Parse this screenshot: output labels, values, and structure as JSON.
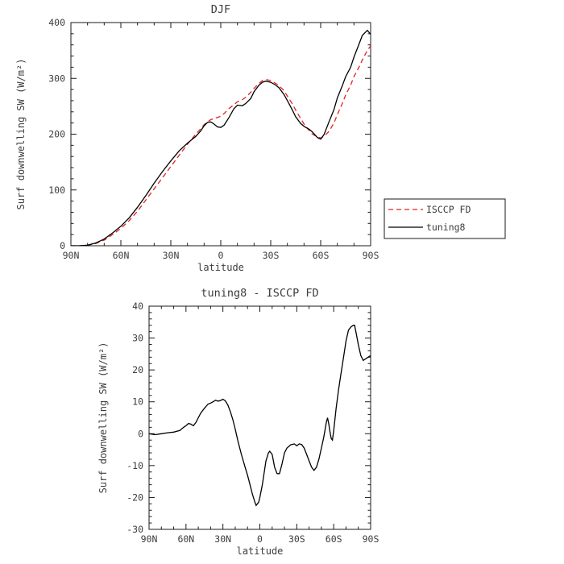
{
  "page": {
    "background": "#ffffff"
  },
  "colors": {
    "axis": "#1a1a1a",
    "text": "#3c3c3c",
    "isccp_fd": "#e02222",
    "tuning8": "#000000"
  },
  "chart_data": [
    {
      "type": "line",
      "title": "DJF",
      "xlabel": "latitude",
      "ylabel": "Surf downwelling SW (W/m²)",
      "xlim": [
        90,
        -90
      ],
      "ylim": [
        0,
        400
      ],
      "grid": false,
      "x_ticks": {
        "values": [
          90,
          60,
          30,
          0,
          -30,
          -60,
          -90
        ],
        "labels": [
          "90N",
          "60N",
          "30N",
          "0",
          "30S",
          "60S",
          "90S"
        ],
        "minor": 10
      },
      "y_ticks": {
        "values": [
          0,
          100,
          200,
          300,
          400
        ],
        "labels": [
          "0",
          "100",
          "200",
          "300",
          "400"
        ],
        "minor": 20
      },
      "legend": {
        "show": true,
        "position": "outside-right-bottom"
      },
      "series": [
        {
          "name": "ISCCP FD",
          "color": "#e02222",
          "dash": [
            6,
            4
          ],
          "x": [
            90,
            85,
            80,
            75,
            70,
            65,
            60,
            55,
            50,
            45,
            40,
            35,
            30,
            25,
            20,
            15,
            12,
            10,
            8,
            6,
            4,
            2,
            0,
            -2,
            -5,
            -8,
            -10,
            -13,
            -15,
            -18,
            -20,
            -23,
            -25,
            -27,
            -30,
            -33,
            -35,
            -38,
            -40,
            -43,
            -45,
            -48,
            -50,
            -53,
            -55,
            -58,
            -60,
            -62,
            -65,
            -68,
            -70,
            -73,
            -75,
            -78,
            -80,
            -83,
            -85,
            -88,
            -90
          ],
          "y": [
            0,
            0,
            1,
            4,
            10,
            20,
            31,
            45,
            62,
            82,
            102,
            122,
            142,
            162,
            182,
            200,
            210,
            217,
            222,
            226,
            228,
            230,
            232,
            237,
            246,
            253,
            258,
            262,
            266,
            275,
            282,
            291,
            296,
            298,
            296,
            291,
            287,
            278,
            268,
            254,
            243,
            228,
            218,
            207,
            200,
            195,
            193,
            196,
            205,
            220,
            235,
            255,
            270,
            288,
            303,
            320,
            333,
            350,
            358
          ]
        },
        {
          "name": "tuning8",
          "color": "#000000",
          "dash": null,
          "x": [
            90,
            85,
            80,
            75,
            70,
            65,
            60,
            55,
            50,
            45,
            40,
            35,
            30,
            25,
            20,
            15,
            12,
            10,
            8,
            6,
            4,
            2,
            0,
            -2,
            -5,
            -8,
            -10,
            -13,
            -15,
            -18,
            -20,
            -23,
            -25,
            -27,
            -30,
            -33,
            -35,
            -38,
            -40,
            -43,
            -45,
            -48,
            -50,
            -53,
            -55,
            -58,
            -60,
            -62,
            -65,
            -68,
            -70,
            -73,
            -75,
            -78,
            -80,
            -83,
            -85,
            -88,
            -90
          ],
          "y": [
            0,
            0,
            1,
            5,
            12,
            23,
            35,
            50,
            69,
            90,
            112,
            133,
            152,
            170,
            184,
            196,
            206,
            215,
            221,
            222,
            218,
            213,
            212,
            216,
            230,
            246,
            252,
            251,
            255,
            264,
            276,
            288,
            293,
            295,
            293,
            288,
            283,
            271,
            260,
            243,
            231,
            219,
            214,
            209,
            204,
            194,
            191,
            199,
            222,
            244,
            265,
            287,
            303,
            320,
            338,
            361,
            377,
            386,
            379
          ]
        }
      ]
    },
    {
      "type": "line",
      "title": "tuning8 - ISCCP FD",
      "xlabel": "latitude",
      "ylabel": "Surf downwelling SW (W/m²)",
      "xlim": [
        90,
        -90
      ],
      "ylim": [
        -30,
        40
      ],
      "grid": false,
      "x_ticks": {
        "values": [
          90,
          60,
          30,
          0,
          -30,
          -60,
          -90
        ],
        "labels": [
          "90N",
          "60N",
          "30N",
          "0",
          "30S",
          "60S",
          "90S"
        ],
        "minor": 10
      },
      "y_ticks": {
        "values": [
          -30,
          -20,
          -10,
          0,
          10,
          20,
          30,
          40
        ],
        "labels": [
          "-30",
          "-20",
          "-10",
          "0",
          "10",
          "20",
          "30",
          "40"
        ],
        "minor": 2
      },
      "legend": {
        "show": false
      },
      "series": [
        {
          "name": "tuning8 - ISCCP FD",
          "color": "#000000",
          "dash": null,
          "x": [
            90,
            85,
            80,
            75,
            70,
            65,
            62,
            60,
            58,
            56,
            54,
            52,
            50,
            48,
            45,
            42,
            40,
            38,
            36,
            34,
            32,
            30,
            28,
            26,
            24,
            22,
            20,
            18,
            15,
            12,
            10,
            8,
            6,
            4,
            3,
            1,
            0,
            -2,
            -4,
            -5,
            -7,
            -8,
            -10,
            -12,
            -14,
            -16,
            -18,
            -20,
            -22,
            -25,
            -28,
            -30,
            -32,
            -34,
            -36,
            -38,
            -40,
            -42,
            -44,
            -46,
            -48,
            -50,
            -52,
            -54,
            -55,
            -56,
            -57,
            -58,
            -59,
            -60,
            -62,
            -64,
            -66,
            -68,
            -70,
            -72,
            -74,
            -76,
            -77,
            -78,
            -80,
            -82,
            -84,
            -86,
            -88,
            -90
          ],
          "y": [
            0,
            -0.3,
            0,
            0.3,
            0.5,
            1,
            2,
            2.5,
            3.2,
            3,
            2.5,
            3.5,
            5,
            6.5,
            8,
            9.3,
            9.6,
            10,
            10.5,
            10.2,
            10.4,
            10.8,
            10.3,
            9,
            7,
            4.5,
            1.5,
            -2,
            -6.5,
            -10.5,
            -13,
            -16,
            -19,
            -21.5,
            -22.5,
            -21.5,
            -20,
            -16,
            -11,
            -8.5,
            -6,
            -5.5,
            -6.5,
            -10.5,
            -12.5,
            -12.5,
            -9.5,
            -6,
            -4.5,
            -3.5,
            -3.2,
            -3.8,
            -3.2,
            -3.4,
            -4.5,
            -6.5,
            -8.5,
            -10.5,
            -11.5,
            -10.5,
            -8,
            -4.5,
            -1,
            3.5,
            5,
            3,
            0.5,
            -1.5,
            -2,
            1,
            8,
            14,
            19,
            24,
            29,
            32.5,
            33.5,
            34,
            34,
            32,
            28,
            24.5,
            23,
            23.5,
            24,
            24.5
          ]
        }
      ]
    }
  ]
}
